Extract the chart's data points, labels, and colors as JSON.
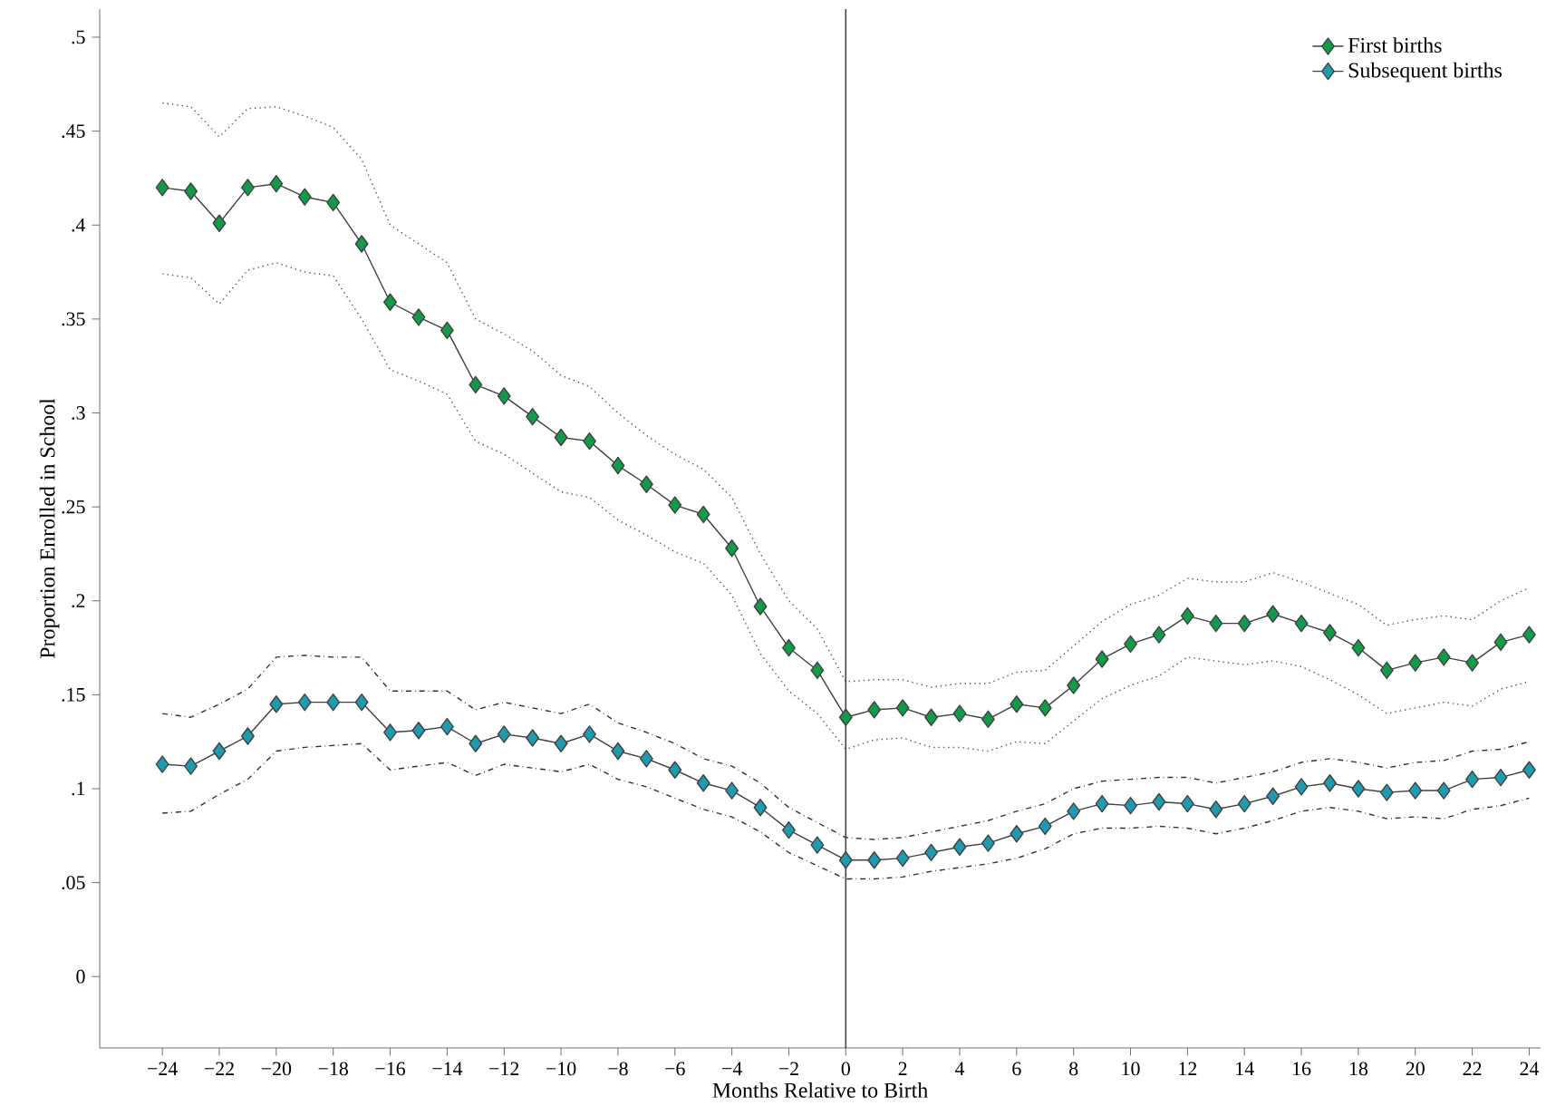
{
  "chart_data": {
    "type": "line",
    "xlabel": "Months Relative to Birth",
    "ylabel": "Proportion Enrolled in School",
    "x": [
      -24,
      -23,
      -22,
      -21,
      -20,
      -19,
      -18,
      -17,
      -16,
      -15,
      -14,
      -13,
      -12,
      -11,
      -10,
      -9,
      -8,
      -7,
      -6,
      -5,
      -4,
      -3,
      -2,
      -1,
      0,
      1,
      2,
      3,
      4,
      5,
      6,
      7,
      8,
      9,
      10,
      11,
      12,
      13,
      14,
      15,
      16,
      17,
      18,
      19,
      20,
      21,
      22,
      23,
      24
    ],
    "series": [
      {
        "name": "First births",
        "color": "#139a48",
        "marker": "diamond",
        "line_style": "solid",
        "values": [
          0.42,
          0.418,
          0.401,
          0.42,
          0.422,
          0.415,
          0.412,
          0.39,
          0.359,
          0.351,
          0.344,
          0.315,
          0.309,
          0.298,
          0.287,
          0.285,
          0.272,
          0.262,
          0.251,
          0.246,
          0.228,
          0.197,
          0.175,
          0.163,
          0.138,
          0.142,
          0.143,
          0.138,
          0.14,
          0.137,
          0.145,
          0.143,
          0.155,
          0.169,
          0.177,
          0.182,
          0.192,
          0.188,
          0.188,
          0.193,
          0.188,
          0.183,
          0.175,
          0.163,
          0.167,
          0.17,
          0.167,
          0.178,
          0.182
        ]
      },
      {
        "name": "Subsequent births",
        "color": "#1f9bb0",
        "marker": "diamond",
        "line_style": "solid",
        "values": [
          0.113,
          0.112,
          0.12,
          0.128,
          0.145,
          0.146,
          0.146,
          0.146,
          0.13,
          0.131,
          0.133,
          0.124,
          0.129,
          0.127,
          0.124,
          0.129,
          0.12,
          0.116,
          0.11,
          0.103,
          0.099,
          0.09,
          0.078,
          0.07,
          0.062,
          0.062,
          0.063,
          0.066,
          0.069,
          0.071,
          0.076,
          0.08,
          0.088,
          0.092,
          0.091,
          0.093,
          0.092,
          0.089,
          0.092,
          0.096,
          0.101,
          0.103,
          0.1,
          0.098,
          0.099,
          0.099,
          0.105,
          0.106,
          0.11
        ]
      },
      {
        "color": "#555555",
        "marker": "none",
        "line_style": "dotted",
        "values": [
          0.465,
          0.463,
          0.447,
          0.462,
          0.463,
          0.458,
          0.452,
          0.435,
          0.4,
          0.39,
          0.38,
          0.35,
          0.342,
          0.333,
          0.32,
          0.314,
          0.3,
          0.288,
          0.278,
          0.27,
          0.255,
          0.225,
          0.2,
          0.185,
          0.157,
          0.158,
          0.158,
          0.154,
          0.156,
          0.156,
          0.162,
          0.163,
          0.176,
          0.189,
          0.198,
          0.203,
          0.212,
          0.21,
          0.21,
          0.215,
          0.21,
          0.204,
          0.198,
          0.187,
          0.19,
          0.192,
          0.19,
          0.2,
          0.207
        ]
      },
      {
        "color": "#555555",
        "marker": "none",
        "line_style": "dotted",
        "values": [
          0.374,
          0.372,
          0.358,
          0.376,
          0.38,
          0.375,
          0.373,
          0.35,
          0.323,
          0.317,
          0.31,
          0.285,
          0.278,
          0.268,
          0.258,
          0.255,
          0.243,
          0.235,
          0.226,
          0.22,
          0.203,
          0.172,
          0.152,
          0.14,
          0.121,
          0.126,
          0.127,
          0.122,
          0.122,
          0.12,
          0.125,
          0.124,
          0.136,
          0.148,
          0.155,
          0.16,
          0.17,
          0.168,
          0.166,
          0.168,
          0.165,
          0.158,
          0.15,
          0.14,
          0.143,
          0.146,
          0.144,
          0.153,
          0.157
        ]
      },
      {
        "color": "#333333",
        "marker": "none",
        "line_style": "dashed",
        "values": [
          0.14,
          0.138,
          0.145,
          0.153,
          0.17,
          0.171,
          0.17,
          0.17,
          0.152,
          0.152,
          0.152,
          0.142,
          0.146,
          0.143,
          0.14,
          0.145,
          0.135,
          0.13,
          0.124,
          0.116,
          0.112,
          0.103,
          0.09,
          0.082,
          0.074,
          0.073,
          0.074,
          0.077,
          0.08,
          0.083,
          0.088,
          0.092,
          0.1,
          0.104,
          0.105,
          0.106,
          0.106,
          0.103,
          0.106,
          0.109,
          0.114,
          0.116,
          0.114,
          0.111,
          0.114,
          0.115,
          0.12,
          0.121,
          0.125
        ]
      },
      {
        "color": "#333333",
        "marker": "none",
        "line_style": "dashed",
        "values": [
          0.087,
          0.088,
          0.097,
          0.105,
          0.12,
          0.122,
          0.123,
          0.124,
          0.11,
          0.112,
          0.114,
          0.107,
          0.113,
          0.111,
          0.109,
          0.113,
          0.105,
          0.101,
          0.095,
          0.089,
          0.085,
          0.077,
          0.066,
          0.059,
          0.052,
          0.052,
          0.053,
          0.056,
          0.058,
          0.06,
          0.063,
          0.068,
          0.076,
          0.079,
          0.079,
          0.08,
          0.079,
          0.076,
          0.079,
          0.083,
          0.088,
          0.09,
          0.088,
          0.084,
          0.085,
          0.084,
          0.089,
          0.091,
          0.095
        ]
      }
    ],
    "xlim": [
      -26.2,
      24.4
    ],
    "ylim": [
      -0.038,
      0.515
    ],
    "xticks": [
      {
        "value": -24,
        "label": "−24"
      },
      {
        "value": -22,
        "label": "−22"
      },
      {
        "value": -20,
        "label": "−20"
      },
      {
        "value": -18,
        "label": "−18"
      },
      {
        "value": -16,
        "label": "−16"
      },
      {
        "value": -14,
        "label": "−14"
      },
      {
        "value": -12,
        "label": "−12"
      },
      {
        "value": -10,
        "label": "−10"
      },
      {
        "value": -8,
        "label": "−8"
      },
      {
        "value": -6,
        "label": "−6"
      },
      {
        "value": -4,
        "label": "−4"
      },
      {
        "value": -2,
        "label": "−2"
      },
      0,
      2,
      4,
      6,
      8,
      10,
      12,
      14,
      16,
      18,
      20,
      22,
      24
    ],
    "yticks": [
      0,
      {
        "value": 0.05,
        "label": ".05"
      },
      {
        "value": 0.1,
        "label": ".1"
      },
      {
        "value": 0.15,
        "label": ".15"
      },
      {
        "value": 0.2,
        "label": ".2"
      },
      {
        "value": 0.25,
        "label": ".25"
      },
      {
        "value": 0.3,
        "label": ".3"
      },
      {
        "value": 0.35,
        "label": ".35"
      },
      {
        "value": 0.4,
        "label": ".4"
      },
      {
        "value": 0.45,
        "label": ".45"
      },
      {
        "value": 0.5,
        "label": ".5"
      }
    ],
    "ref_lines": [
      {
        "axis": "x",
        "value": 0,
        "color": "#444444",
        "line_style": "solid"
      }
    ],
    "grid": false,
    "legend": "top right"
  }
}
